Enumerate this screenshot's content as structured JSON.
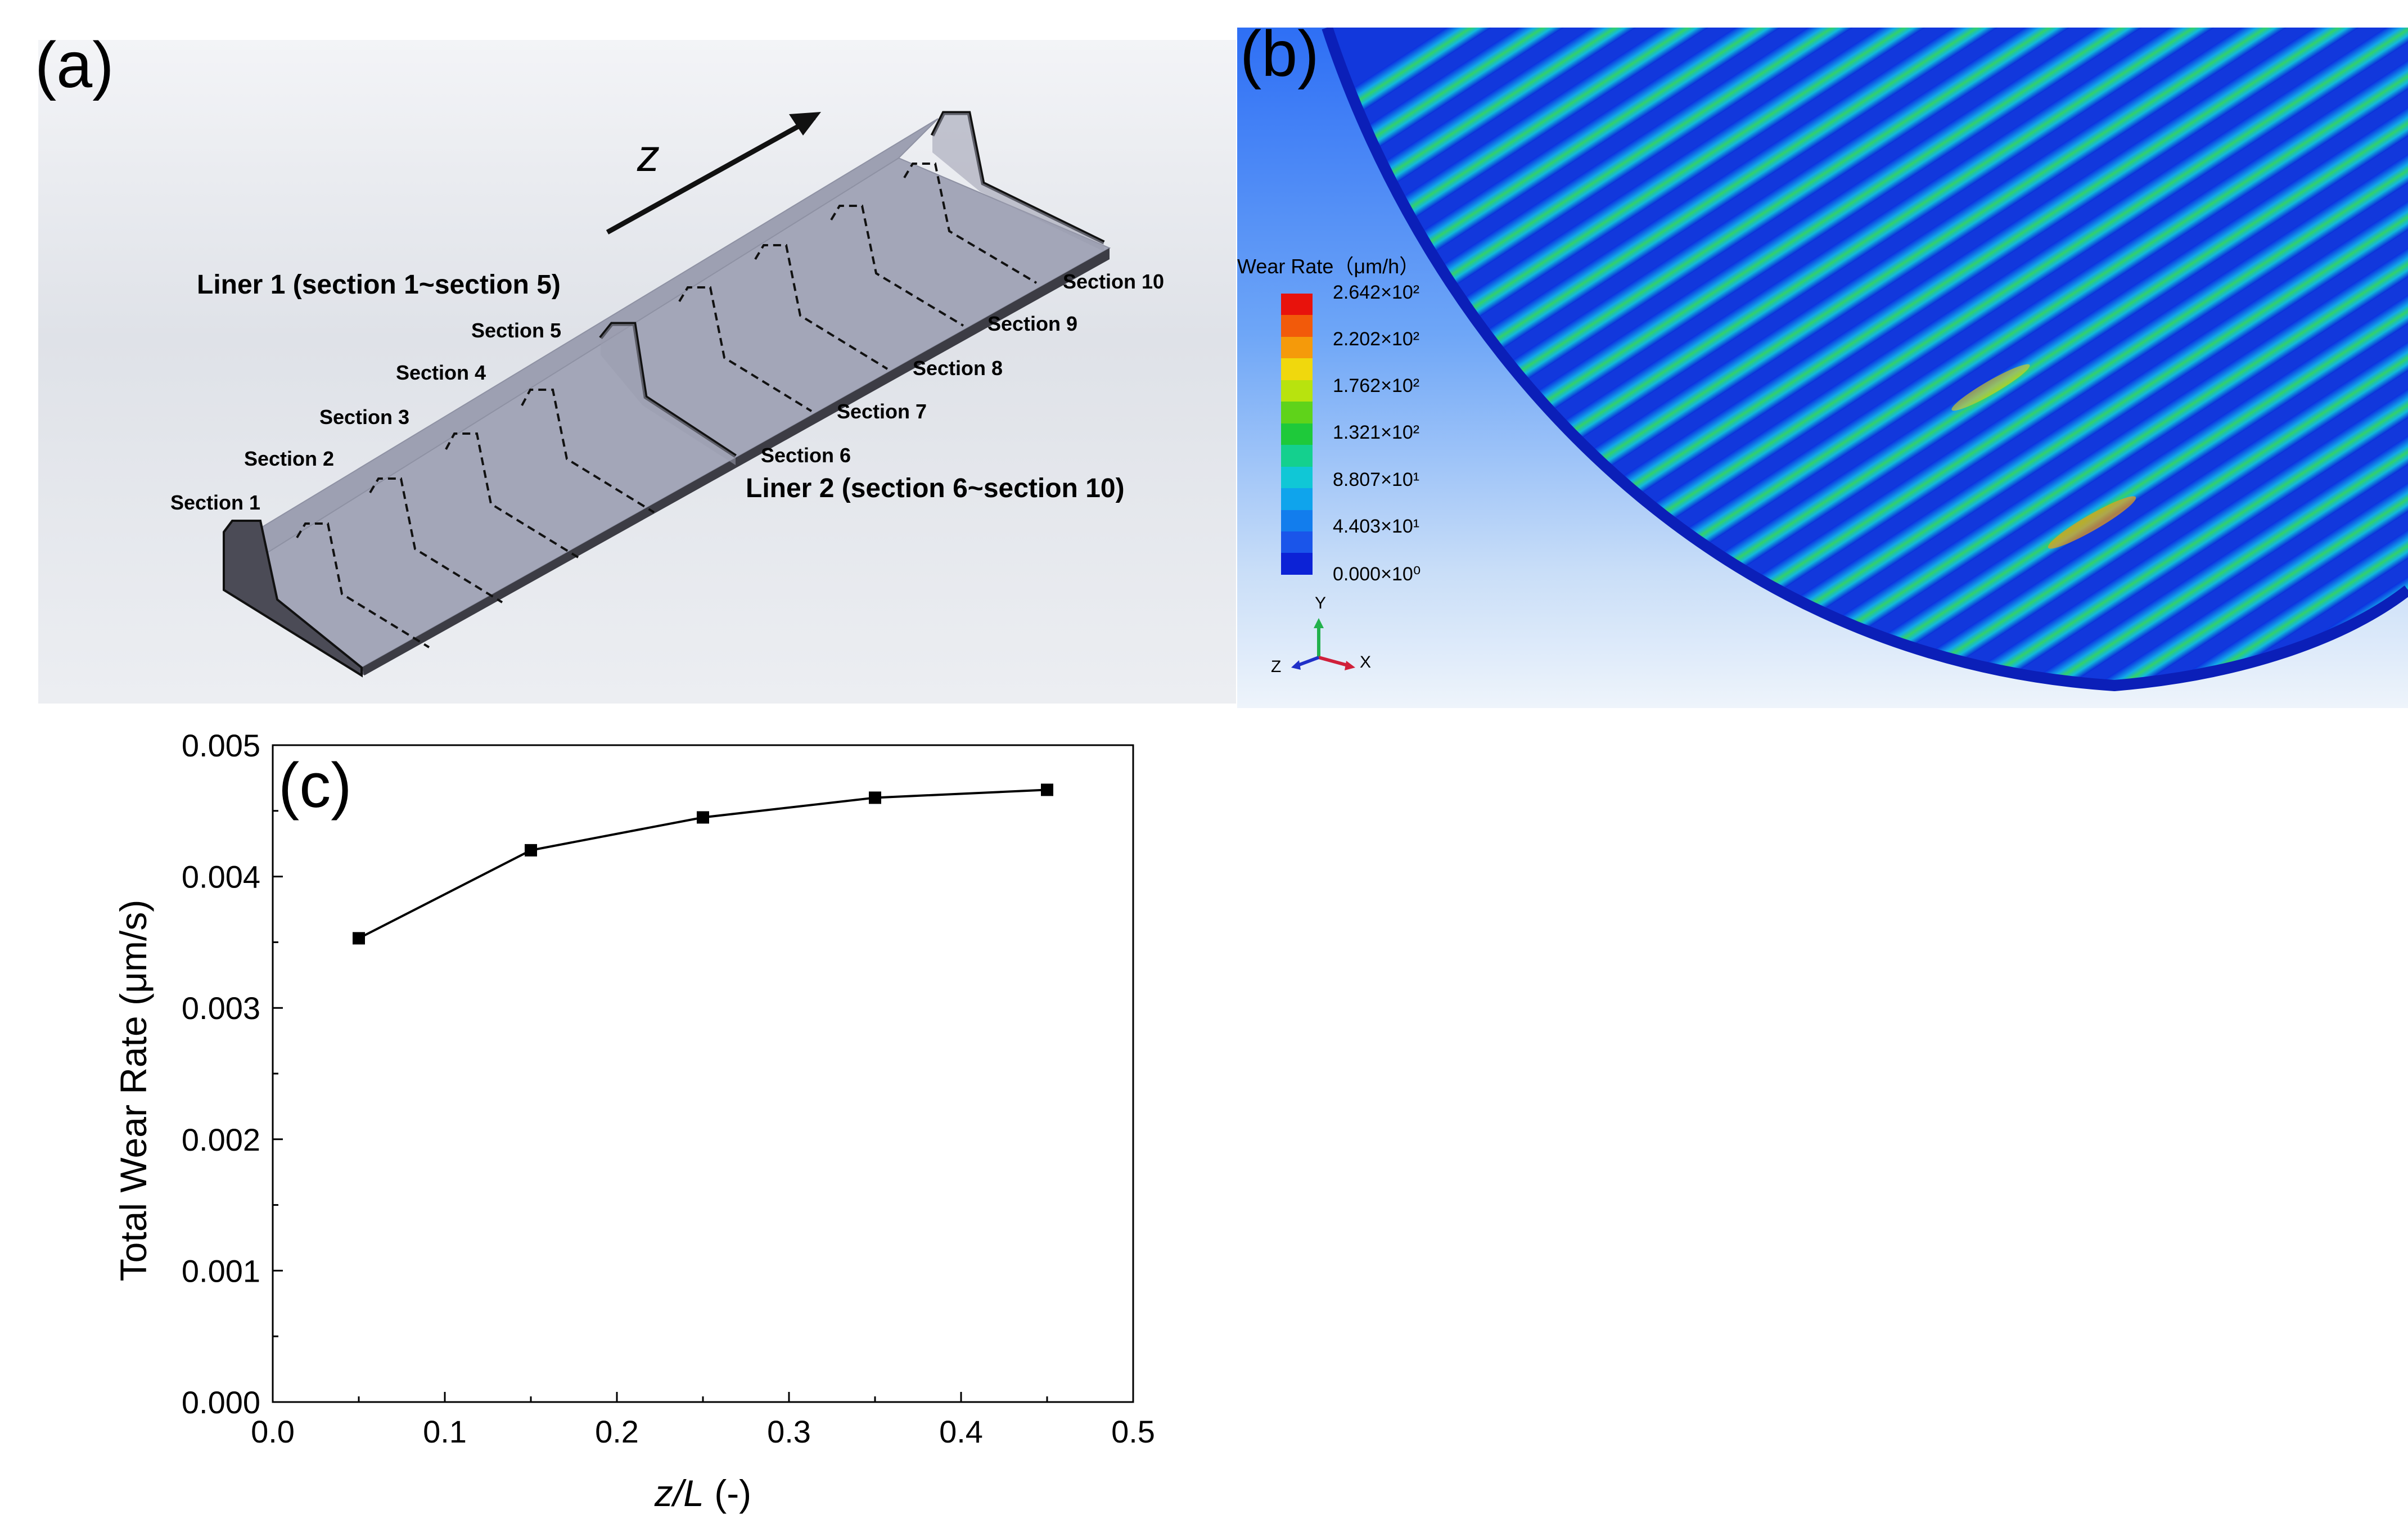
{
  "panel_a": {
    "label": "(a)",
    "axis_label": "z",
    "liner1": "Liner 1 (section 1~section 5)",
    "liner2": "Liner 2 (section 6~section 10)",
    "sections": [
      "Section 1",
      "Section 2",
      "Section 3",
      "Section 4",
      "Section 5",
      "Section 6",
      "Section 7",
      "Section 8",
      "Section 9",
      "Section 10"
    ]
  },
  "panel_b": {
    "label": "(b)",
    "legend_title": "Wear Rate（μm/h）",
    "legend_ticks": [
      "2.642×10²",
      "2.202×10²",
      "1.762×10²",
      "1.321×10²",
      "8.807×10¹",
      "4.403×10¹",
      "0.000×10⁰"
    ],
    "legend_colors": [
      "#e8120c",
      "#f25a0a",
      "#f59a0a",
      "#f0d80d",
      "#b8e30e",
      "#5fd31a",
      "#1ec93a",
      "#14d08e",
      "#10c7d6",
      "#0fa4ec",
      "#127ded",
      "#1a55ea",
      "#0c22d6"
    ],
    "triad": {
      "y": "Y",
      "x": "X",
      "z": "Z"
    }
  },
  "chart_data": {
    "type": "line",
    "label": "(c)",
    "x": [
      0.05,
      0.15,
      0.25,
      0.35,
      0.45
    ],
    "values": [
      0.00353,
      0.0042,
      0.00445,
      0.0046,
      0.00466
    ],
    "xlabel_italic": "z/L",
    "xlabel_unit": " (-)",
    "ylabel": "Total Wear Rate (μm/s)",
    "xlim": [
      0.0,
      0.5
    ],
    "ylim": [
      0.0,
      0.005
    ],
    "xticks": [
      "0.0",
      "0.1",
      "0.2",
      "0.3",
      "0.4",
      "0.5"
    ],
    "yticks": [
      "0.000",
      "0.001",
      "0.002",
      "0.003",
      "0.004",
      "0.005"
    ],
    "marker": "square",
    "grid": false
  }
}
